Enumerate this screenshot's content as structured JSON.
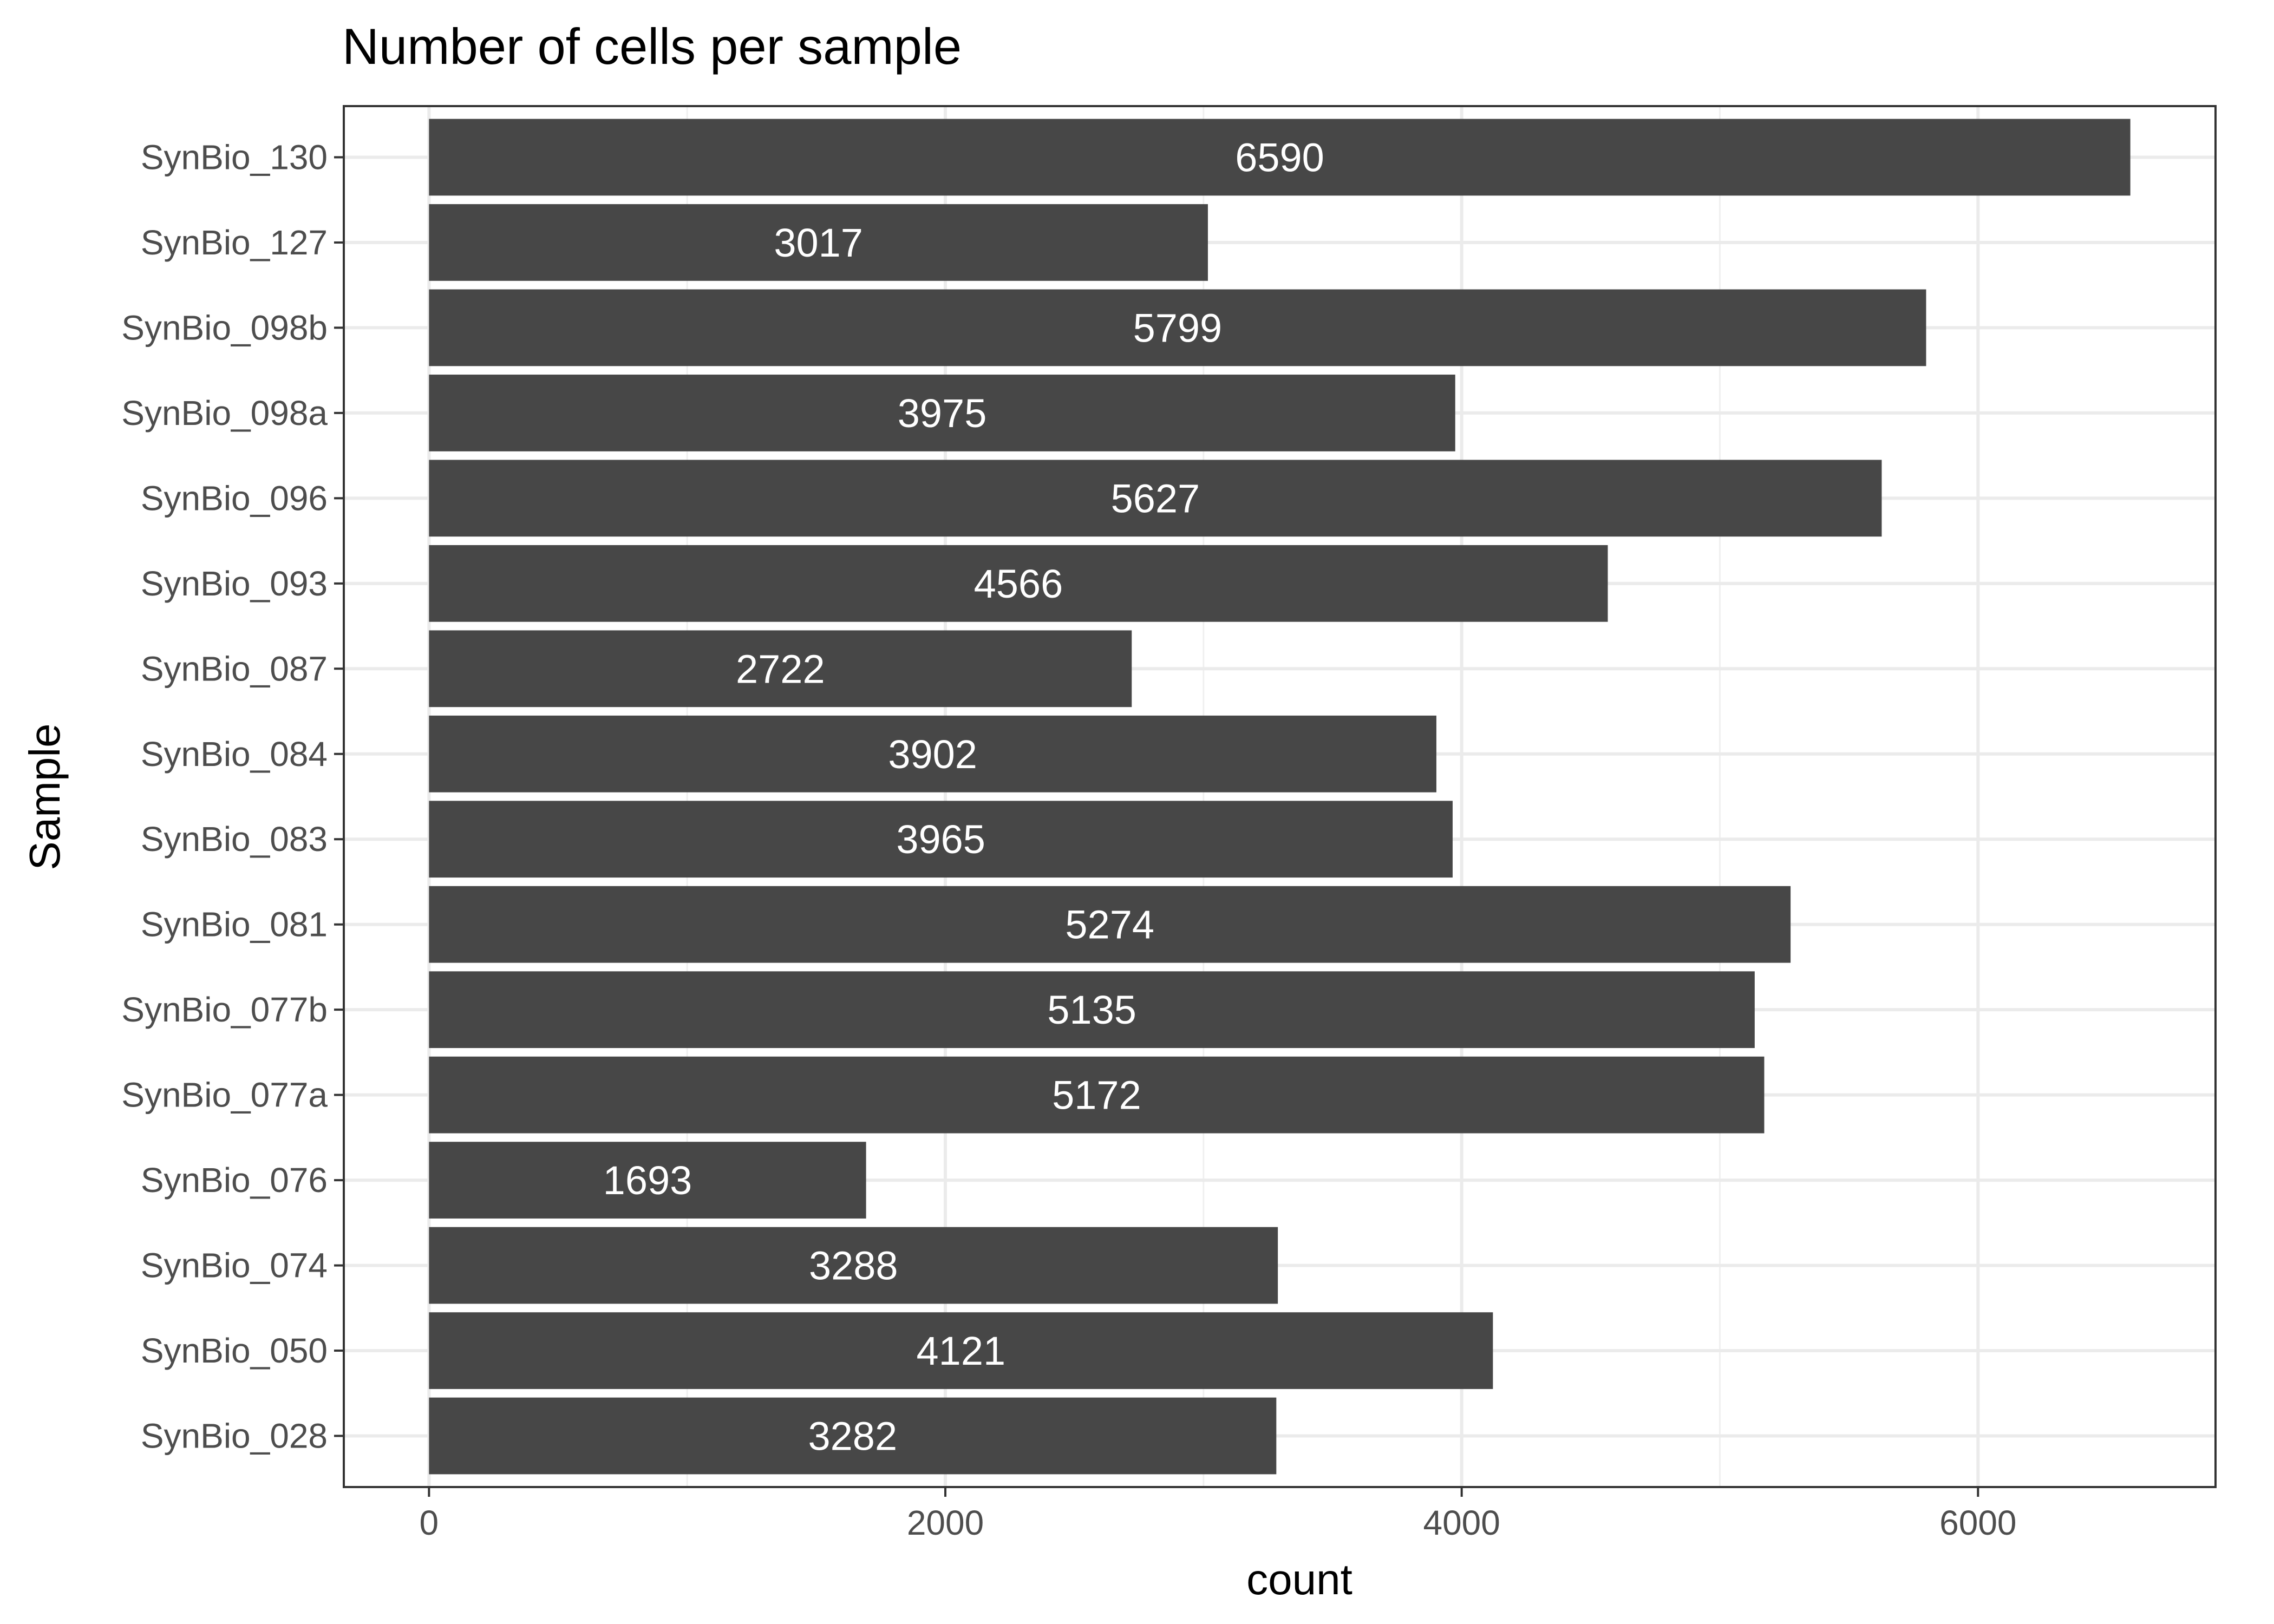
{
  "chart_data": {
    "type": "bar",
    "orientation": "horizontal",
    "title": "Number of cells per sample",
    "xlabel": "count",
    "ylabel": "Sample",
    "categories": [
      "SynBio_028",
      "SynBio_050",
      "SynBio_074",
      "SynBio_076",
      "SynBio_077a",
      "SynBio_077b",
      "SynBio_081",
      "SynBio_083",
      "SynBio_084",
      "SynBio_087",
      "SynBio_093",
      "SynBio_096",
      "SynBio_098a",
      "SynBio_098b",
      "SynBio_127",
      "SynBio_130"
    ],
    "values": [
      3282,
      4121,
      3288,
      1693,
      5172,
      5135,
      5274,
      3965,
      3902,
      2722,
      4566,
      5627,
      3975,
      5799,
      3017,
      6590
    ],
    "xlim": [
      -330,
      6920
    ],
    "xticks": [
      0,
      2000,
      4000,
      6000
    ],
    "xtick_labels": [
      "0",
      "2000",
      "4000",
      "6000"
    ],
    "grid": true,
    "bar_color": "#474747",
    "label_color": "#ffffff"
  }
}
